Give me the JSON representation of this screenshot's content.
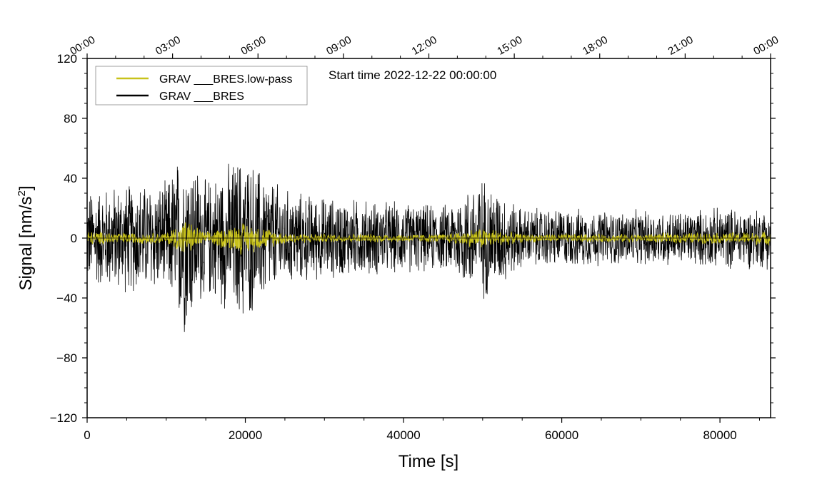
{
  "chart_data": {
    "type": "line",
    "annotation": "Start time 2022-12-22 00:00:00",
    "xlabel": "Time [s]",
    "ylabel_main": "Signal [nm/s",
    "ylabel_sup": "2",
    "ylabel_end": "]",
    "xlim": [
      0,
      86400
    ],
    "ylim": [
      -120,
      120
    ],
    "x_ticks": [
      0,
      20000,
      40000,
      60000,
      80000
    ],
    "x_tick_labels": [
      "0",
      "20000",
      "40000",
      "60000",
      "80000"
    ],
    "y_ticks": [
      -120,
      -80,
      -40,
      0,
      40,
      80,
      120
    ],
    "y_tick_labels": [
      "−120",
      "−80",
      "−40",
      "0",
      "40",
      "80",
      "120"
    ],
    "top_axis_ticks": [
      0,
      10800,
      21600,
      32400,
      43200,
      54000,
      64800,
      75600,
      86400
    ],
    "top_axis_labels": [
      "00:00",
      "03:00",
      "06:00",
      "09:00",
      "12:00",
      "15:00",
      "18:00",
      "21:00",
      "00:00"
    ],
    "legend_placement": "top-left",
    "series": [
      {
        "name": "GRAV ___BRES.low-pass",
        "color": "#c8c21a",
        "env_x": [
          0,
          5000,
          10000,
          12300,
          15000,
          19700,
          25000,
          30000,
          35000,
          40000,
          45000,
          50000,
          55000,
          60000,
          65000,
          70000,
          75000,
          80000,
          86400
        ],
        "env_y": [
          5,
          4,
          4,
          14,
          4,
          12,
          4,
          3,
          3,
          3,
          3,
          8,
          3,
          3,
          3,
          3,
          4,
          4,
          5
        ]
      },
      {
        "name": "GRAV ___BRES",
        "color": "#000000",
        "env_x": [
          0,
          5000,
          10000,
          12300,
          15000,
          19700,
          25000,
          30000,
          35000,
          40000,
          45000,
          50000,
          55000,
          60000,
          65000,
          70000,
          75000,
          80000,
          86400
        ],
        "env_y": [
          35,
          40,
          40,
          70,
          42,
          62,
          35,
          30,
          28,
          26,
          24,
          45,
          22,
          22,
          20,
          20,
          20,
          22,
          22
        ]
      }
    ]
  }
}
